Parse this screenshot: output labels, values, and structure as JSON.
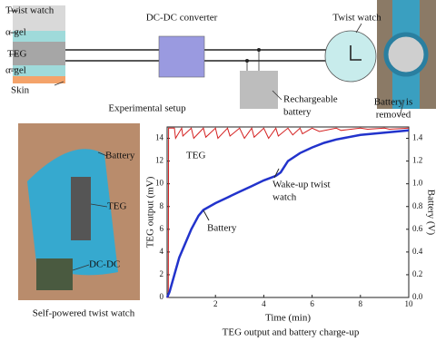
{
  "diagram": {
    "layers": [
      "Twist watch",
      "α-gel",
      "TEG",
      "α-gel",
      "Skin"
    ],
    "converter": "DC-DC converter",
    "battery": [
      "Rechargeable",
      "battery"
    ],
    "watch": "Twist watch",
    "removed": [
      "Battery is",
      "removed"
    ],
    "caption": "Experimental setup"
  },
  "photo": {
    "labels": [
      "Battery",
      "TEG",
      "DC-DC"
    ],
    "caption": "Self-powered twist watch"
  },
  "chart_data": {
    "type": "line",
    "caption": "TEG output and battery charge-up",
    "xlabel": "Time (min)",
    "ylabel": "TEG output (mV)",
    "y2label": "Battery (V)",
    "xlim": [
      0,
      10
    ],
    "xticks": [
      2,
      4,
      6,
      8,
      10
    ],
    "ylim": [
      0,
      15
    ],
    "yticks": [
      0,
      2,
      4,
      6,
      8,
      10,
      12,
      14
    ],
    "y2lim": [
      0,
      1.5
    ],
    "y2ticks": [
      {
        "value": 0,
        "label": "0.0"
      },
      {
        "value": 0.2,
        "label": "0.2"
      },
      {
        "value": 0.4,
        "label": "0.4"
      },
      {
        "value": 0.6,
        "label": "0.6"
      },
      {
        "value": 0.8,
        "label": "0.8"
      },
      {
        "value": 1,
        "label": "1.0"
      },
      {
        "value": 1.2,
        "label": "1.2"
      },
      {
        "value": 1.4,
        "label": "1.4"
      }
    ],
    "annotations": [
      "TEG",
      "Battery",
      [
        "Wake-up twist",
        "watch"
      ]
    ],
    "series": [
      {
        "name": "TEG",
        "color": "#d42020",
        "x": [
          0,
          0.05,
          0.06,
          0.3,
          0.35,
          0.6,
          0.65,
          1,
          1.1,
          1.5,
          1.6,
          2,
          2.1,
          2.5,
          2.6,
          3,
          3.2,
          3.5,
          3.6,
          4,
          4.2,
          4.5,
          4.6,
          5,
          5.2,
          5.5,
          5.6,
          6,
          6.3,
          7,
          7.2,
          8,
          8.3,
          9,
          9.2,
          10
        ],
        "values": [
          0,
          0,
          14.9,
          14.9,
          14,
          14.9,
          14.2,
          14.9,
          14,
          14.9,
          14.1,
          14.9,
          14,
          14.9,
          14.2,
          14.9,
          14,
          14.9,
          14.1,
          14.9,
          14,
          14.9,
          14.2,
          14.9,
          14.3,
          14.9,
          14.4,
          14.9,
          14.6,
          14.9,
          14.7,
          14.9,
          14.8,
          14.9,
          14.8,
          14.9
        ]
      },
      {
        "name": "Battery",
        "color": "#2233cc",
        "axis": "y2",
        "x": [
          0,
          0.1,
          0.3,
          0.5,
          0.8,
          1,
          1.3,
          1.5,
          2,
          2.5,
          3,
          3.5,
          4,
          4.5,
          4.7,
          5,
          5.5,
          6,
          6.5,
          7,
          8,
          9,
          10
        ],
        "values": [
          0,
          0.05,
          0.2,
          0.35,
          0.5,
          0.6,
          0.72,
          0.77,
          0.83,
          0.88,
          0.93,
          0.98,
          1.03,
          1.07,
          1.1,
          1.2,
          1.27,
          1.32,
          1.36,
          1.39,
          1.43,
          1.45,
          1.47
        ]
      }
    ]
  }
}
